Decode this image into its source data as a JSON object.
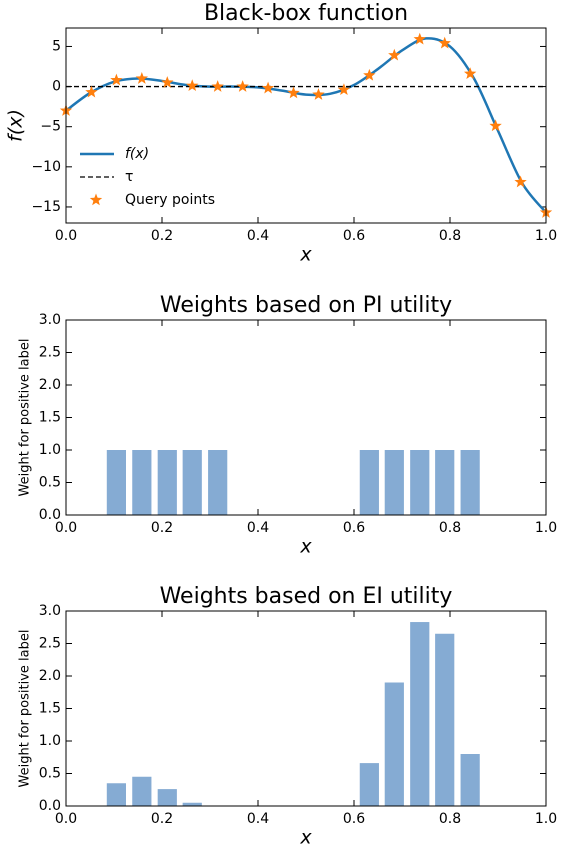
{
  "chart_data": [
    {
      "type": "line",
      "title": "Black-box function",
      "xlabel": "x",
      "ylabel": "f(x)",
      "xlim": [
        0,
        1
      ],
      "xticks": [
        {
          "value": 0,
          "label": "0.0"
        },
        0.2,
        0.4,
        0.6,
        0.8,
        {
          "value": 1,
          "label": "1.0"
        }
      ],
      "ylim": [
        -17,
        7.3
      ],
      "yticks": [
        {
          "value": -15,
          "label": "−15"
        },
        {
          "value": -10,
          "label": "−10"
        },
        {
          "value": -5,
          "label": "−5"
        },
        0,
        5
      ],
      "legend": "lower left",
      "series": [
        {
          "name": "f(x)",
          "color": "#1f77b4",
          "x": [
            0,
            0.05,
            0.1,
            0.15,
            0.2,
            0.25,
            0.3,
            0.35,
            0.4,
            0.45,
            0.5,
            0.55,
            0.6,
            0.65,
            0.7,
            0.75,
            0.8,
            0.85,
            0.9,
            0.95,
            1
          ],
          "values": [
            -3.0,
            -0.8,
            0.6,
            1.0,
            0.7,
            0.2,
            0.0,
            0.0,
            -0.1,
            -0.5,
            -1.0,
            -0.9,
            0.2,
            2.2,
            4.5,
            6.0,
            5.0,
            1.0,
            -5.5,
            -12.0,
            -15.7
          ]
        },
        {
          "name": "τ",
          "color": "#000000",
          "style": "dashed",
          "value": 0
        },
        {
          "name": "Query points",
          "color": "#ff7f0e",
          "marker": "star",
          "x": [
            0,
            0.053,
            0.105,
            0.158,
            0.211,
            0.263,
            0.316,
            0.368,
            0.421,
            0.474,
            0.526,
            0.579,
            0.632,
            0.684,
            0.737,
            0.789,
            0.842,
            0.895,
            0.947,
            1
          ],
          "values": [
            -3.0,
            -0.7,
            0.8,
            1.0,
            0.5,
            0.1,
            0.0,
            0.0,
            -0.2,
            -0.8,
            -1.0,
            -0.4,
            1.4,
            3.9,
            5.9,
            5.4,
            1.6,
            -4.9,
            -11.9,
            -15.7
          ]
        }
      ]
    },
    {
      "type": "bar",
      "title": "Weights based on PI utility",
      "xlabel": "x",
      "ylabel": "Weight for positive label",
      "color": "#85abd3",
      "xlim": [
        0,
        1
      ],
      "xticks": [
        {
          "value": 0,
          "label": "0.0"
        },
        0.2,
        0.4,
        0.6,
        0.8,
        {
          "value": 1,
          "label": "1.0"
        }
      ],
      "ylim": [
        0,
        3
      ],
      "yticks": [
        {
          "value": 0,
          "label": "0.0"
        },
        0.5,
        {
          "value": 1,
          "label": "1.0"
        },
        1.5,
        {
          "value": 2,
          "label": "2.0"
        },
        2.5,
        {
          "value": 3,
          "label": "3.0"
        }
      ],
      "x": [
        0.105,
        0.158,
        0.211,
        0.263,
        0.316,
        0.632,
        0.684,
        0.737,
        0.789,
        0.842
      ],
      "values": [
        1,
        1,
        1,
        1,
        1,
        1,
        1,
        1,
        1,
        1
      ]
    },
    {
      "type": "bar",
      "title": "Weights based on EI utility",
      "xlabel": "x",
      "ylabel": "Weight for positive label",
      "color": "#85abd3",
      "xlim": [
        0,
        1
      ],
      "xticks": [
        {
          "value": 0,
          "label": "0.0"
        },
        0.2,
        0.4,
        0.6,
        0.8,
        {
          "value": 1,
          "label": "1.0"
        }
      ],
      "ylim": [
        0,
        3
      ],
      "yticks": [
        {
          "value": 0,
          "label": "0.0"
        },
        0.5,
        {
          "value": 1,
          "label": "1.0"
        },
        1.5,
        {
          "value": 2,
          "label": "2.0"
        },
        2.5,
        {
          "value": 3,
          "label": "3.0"
        }
      ],
      "x": [
        0.105,
        0.158,
        0.211,
        0.263,
        0.632,
        0.684,
        0.737,
        0.789,
        0.842
      ],
      "values": [
        0.35,
        0.45,
        0.26,
        0.05,
        0.66,
        1.9,
        2.83,
        2.65,
        0.8
      ]
    }
  ]
}
